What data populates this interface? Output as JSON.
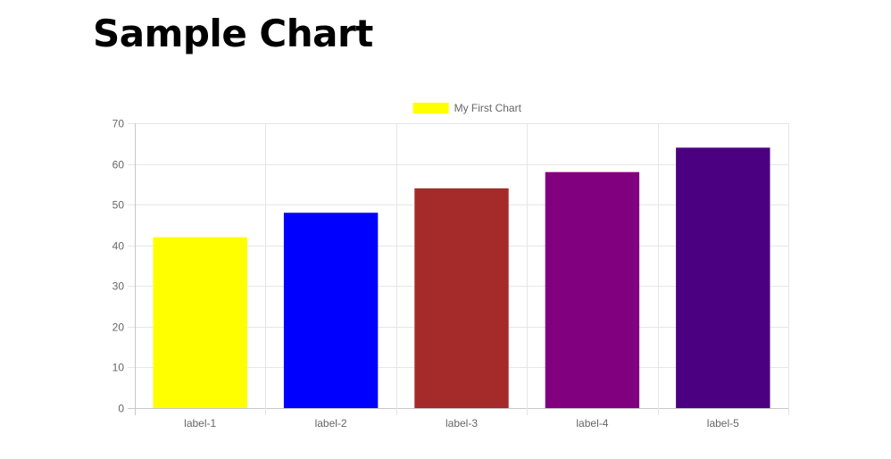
{
  "page": {
    "title": "Sample Chart"
  },
  "chart_data": {
    "type": "bar",
    "categories": [
      "label-1",
      "label-2",
      "label-3",
      "label-4",
      "label-5"
    ],
    "series": [
      {
        "name": "My First Chart",
        "values": [
          42,
          48,
          54,
          58,
          64
        ],
        "colors": [
          "#ffff00",
          "#0000ff",
          "#a52a2a",
          "#800080",
          "#4b0082"
        ]
      }
    ],
    "legend_color": "#ffff00",
    "legend_position": "top-center",
    "ylim": [
      0,
      70
    ],
    "yticks": [
      0,
      10,
      20,
      30,
      40,
      50,
      60,
      70
    ],
    "grid": true,
    "title": "",
    "xlabel": "",
    "ylabel": ""
  }
}
